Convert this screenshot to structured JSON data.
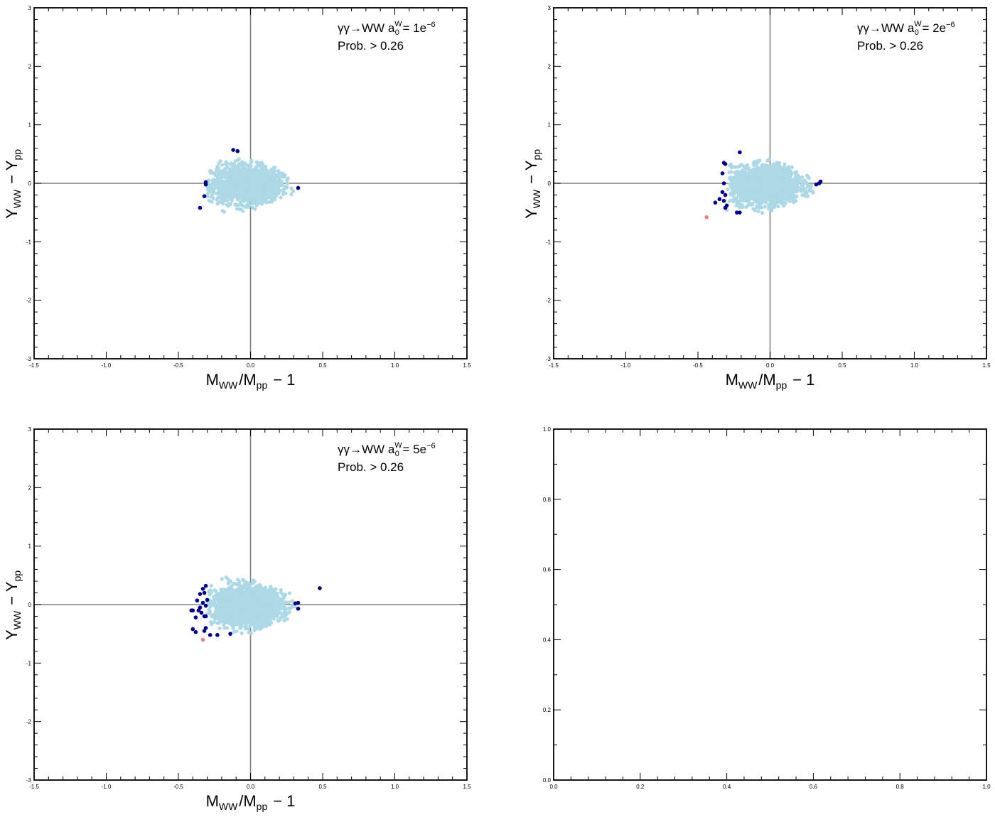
{
  "colors": {
    "background_points": "#add8e6",
    "outlier_points": "#00008b",
    "highlight_points": "#f08080",
    "reference_lines": "#808080",
    "frame": "#000000"
  },
  "chart_data": [
    {
      "type": "scatter",
      "panel": "top-left",
      "xlabel": "M_WW/M_pp − 1",
      "ylabel": "Y_WW − Y_pp",
      "xlim": [
        -1.5,
        1.5
      ],
      "ylim": [
        -3,
        3
      ],
      "x_ticks": [
        "-1.5",
        "-1.0",
        "-0.5",
        "0.0",
        "0.5",
        "1.0",
        "1.5"
      ],
      "y_ticks": [
        "-3",
        "-2",
        "-1",
        "0",
        "1",
        "2",
        "3"
      ],
      "annotation_process": "γγ→WW",
      "annotation_coupling": "a",
      "annotation_coupling_sub": "0",
      "annotation_coupling_sup": "W",
      "annotation_value": " = 1e",
      "annotation_value_sup": "−6",
      "annotation_cut": "Prob. > 0.26",
      "reference_lines": {
        "x": 0,
        "y": 0
      },
      "cloud": {
        "name": "",
        "x_center": -0.03,
        "y_center": -0.02,
        "x_range": [
          -0.3,
          0.3
        ],
        "y_range": [
          -0.48,
          0.48
        ],
        "n_points": 1600
      },
      "series": [
        {
          "role": "outliers",
          "points": [
            [
              -0.12,
              0.57
            ],
            [
              -0.09,
              0.55
            ],
            [
              -0.31,
              0.02
            ],
            [
              -0.31,
              -0.02
            ],
            [
              -0.32,
              -0.22
            ],
            [
              -0.35,
              -0.42
            ],
            [
              0.33,
              -0.08
            ]
          ]
        },
        {
          "role": "highlight",
          "points": []
        }
      ]
    },
    {
      "type": "scatter",
      "panel": "top-right",
      "xlabel": "M_WW/M_pp − 1",
      "ylabel": "Y_WW − Y_pp",
      "xlim": [
        -1.5,
        1.5
      ],
      "ylim": [
        -3,
        3
      ],
      "x_ticks": [
        "-1.5",
        "-1.0",
        "-0.5",
        "0.0",
        "0.5",
        "1.0",
        "1.5"
      ],
      "y_ticks": [
        "-3",
        "-2",
        "-1",
        "0",
        "1",
        "2",
        "3"
      ],
      "annotation_process": "γγ→WW",
      "annotation_coupling": "a",
      "annotation_coupling_sub": "0",
      "annotation_coupling_sup": "W",
      "annotation_value": " = 2e",
      "annotation_value_sup": "−6",
      "annotation_cut": "Prob. > 0.26",
      "reference_lines": {
        "x": 0,
        "y": 0
      },
      "cloud": {
        "name": "",
        "x_center": -0.03,
        "y_center": -0.03,
        "x_range": [
          -0.3,
          0.3
        ],
        "y_range": [
          -0.48,
          0.48
        ],
        "n_points": 1800
      },
      "series": [
        {
          "role": "outliers",
          "points": [
            [
              -0.21,
              0.53
            ],
            [
              -0.32,
              0.35
            ],
            [
              -0.31,
              0.33
            ],
            [
              -0.33,
              0.17
            ],
            [
              -0.32,
              0.0
            ],
            [
              -0.33,
              -0.15
            ],
            [
              -0.31,
              -0.2
            ],
            [
              -0.35,
              -0.27
            ],
            [
              -0.32,
              -0.3
            ],
            [
              -0.3,
              -0.38
            ],
            [
              -0.38,
              -0.33
            ],
            [
              -0.31,
              -0.42
            ],
            [
              -0.21,
              -0.5
            ],
            [
              -0.23,
              -0.5
            ],
            [
              0.32,
              -0.02
            ],
            [
              0.34,
              0.0
            ],
            [
              0.35,
              0.03
            ]
          ]
        },
        {
          "role": "highlight",
          "points": [
            [
              -0.44,
              -0.58
            ]
          ]
        }
      ]
    },
    {
      "type": "scatter",
      "panel": "bottom-left",
      "xlabel": "M_WW/M_pp − 1",
      "ylabel": "Y_WW − Y_pp",
      "xlim": [
        -1.5,
        1.5
      ],
      "ylim": [
        -3,
        3
      ],
      "x_ticks": [
        "-1.5",
        "-1.0",
        "-0.5",
        "0.0",
        "0.5",
        "1.0",
        "1.5"
      ],
      "y_ticks": [
        "-3",
        "-2",
        "-1",
        "0",
        "1",
        "2",
        "3"
      ],
      "annotation_process": "γγ→WW",
      "annotation_coupling": "a",
      "annotation_coupling_sub": "0",
      "annotation_coupling_sup": "W",
      "annotation_value": " = 5e",
      "annotation_value_sup": "−6",
      "annotation_cut": "Prob. > 0.26",
      "reference_lines": {
        "x": 0,
        "y": 0
      },
      "cloud": {
        "name": "",
        "x_center": -0.02,
        "y_center": -0.02,
        "x_range": [
          -0.3,
          0.32
        ],
        "y_range": [
          -0.5,
          0.5
        ],
        "n_points": 2000
      },
      "series": [
        {
          "role": "outliers",
          "points": [
            [
              -0.31,
              0.32
            ],
            [
              -0.33,
              0.27
            ],
            [
              -0.32,
              0.2
            ],
            [
              -0.35,
              0.18
            ],
            [
              -0.3,
              0.08
            ],
            [
              -0.37,
              0.07
            ],
            [
              -0.33,
              0.03
            ],
            [
              -0.31,
              -0.02
            ],
            [
              -0.35,
              -0.05
            ],
            [
              -0.4,
              -0.1
            ],
            [
              -0.41,
              -0.1
            ],
            [
              -0.36,
              -0.1
            ],
            [
              -0.32,
              -0.2
            ],
            [
              -0.31,
              -0.2
            ],
            [
              -0.34,
              -0.14
            ],
            [
              -0.38,
              -0.22
            ],
            [
              -0.4,
              -0.42
            ],
            [
              -0.38,
              -0.47
            ],
            [
              -0.31,
              -0.4
            ],
            [
              -0.32,
              -0.45
            ],
            [
              -0.23,
              -0.52
            ],
            [
              -0.14,
              -0.5
            ],
            [
              -0.28,
              -0.52
            ],
            [
              0.31,
              0.02
            ],
            [
              0.33,
              0.03
            ],
            [
              0.33,
              -0.07
            ],
            [
              0.48,
              0.28
            ]
          ]
        },
        {
          "role": "highlight",
          "points": [
            [
              -0.33,
              -0.6
            ]
          ]
        }
      ]
    },
    {
      "type": "scatter",
      "panel": "bottom-right",
      "xlabel": "",
      "ylabel": "",
      "xlim": [
        0,
        1
      ],
      "ylim": [
        0,
        1
      ],
      "x_ticks": [
        "0.0",
        "0.2",
        "0.4",
        "0.6",
        "0.8",
        "1.0"
      ],
      "y_ticks": [
        "0.0",
        "0.2",
        "0.4",
        "0.6",
        "0.8",
        "1.0"
      ],
      "annotation_process": "",
      "annotation_cut": "",
      "series": []
    }
  ]
}
